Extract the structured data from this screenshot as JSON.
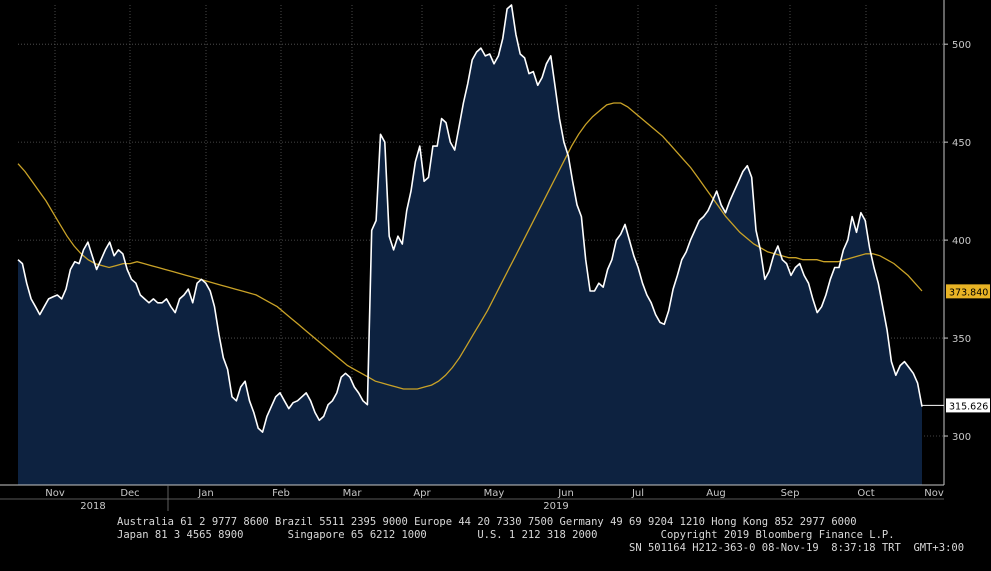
{
  "chart_data": {
    "type": "area",
    "y_axis_ticks": [
      "300",
      "350",
      "400",
      "450",
      "500"
    ],
    "ylim": [
      275,
      520
    ],
    "x_axis_months": [
      "Nov",
      "Dec",
      "Jan",
      "Feb",
      "Mar",
      "Apr",
      "May",
      "Jun",
      "Jul",
      "Aug",
      "Sep",
      "Oct",
      "Nov"
    ],
    "x_axis_years": [
      "2018",
      "2019"
    ],
    "last_price_label": "315.626",
    "moving_average_label": "373.840",
    "colors": {
      "price_line": "#ffffff",
      "area_fill": "#0d2240",
      "moving_average": "#c9a227",
      "ma_label_bg": "#e8b325",
      "background": "#000000",
      "grid": "#5a5a5a"
    },
    "series": [
      {
        "values": [
          390,
          388,
          378,
          370,
          366,
          362,
          366,
          370,
          371,
          372,
          370,
          375,
          385,
          389,
          388,
          395,
          399,
          392,
          385,
          390,
          395,
          399,
          392,
          395,
          393,
          385,
          380,
          378,
          372,
          370,
          368,
          370,
          368,
          368,
          370,
          366,
          363,
          370,
          372,
          375,
          368,
          378,
          380,
          378,
          374,
          366,
          352,
          340,
          334,
          320,
          318,
          325,
          328,
          318,
          312,
          304,
          302,
          310,
          315,
          320,
          322,
          318,
          314,
          317,
          318,
          320,
          322,
          318,
          312,
          308,
          310,
          316,
          318,
          322,
          330,
          332,
          330,
          325,
          322,
          318,
          316,
          405,
          410,
          454,
          450,
          402,
          395,
          402,
          398,
          415,
          425,
          440,
          448,
          430,
          432,
          448,
          448,
          462,
          460,
          450,
          446,
          458,
          470,
          480,
          492,
          496,
          498,
          494,
          495,
          490,
          494,
          503,
          518,
          520,
          505,
          495,
          493,
          485,
          486,
          479,
          483,
          490,
          494,
          478,
          462,
          450,
          443,
          430,
          418,
          412,
          390,
          374,
          374,
          378,
          376,
          385,
          390,
          400,
          403,
          408,
          400,
          392,
          386,
          378,
          372,
          368,
          362,
          358,
          357,
          364,
          375,
          382,
          390,
          394,
          400,
          405,
          410,
          412,
          415,
          420,
          425,
          418,
          414,
          420,
          425,
          430,
          435,
          438,
          432,
          405,
          395,
          380,
          384,
          392,
          397,
          390,
          388,
          382,
          386,
          388,
          382,
          378,
          370,
          363,
          366,
          372,
          380,
          386,
          386,
          395,
          400,
          412,
          404,
          414,
          410,
          396,
          386,
          378,
          366,
          354,
          338,
          331,
          336,
          338,
          335,
          332,
          327,
          315
        ]
      },
      {
        "values": [
          439,
          435,
          430,
          425,
          420,
          414,
          408,
          402,
          397,
          393,
          390,
          388,
          387,
          386,
          387,
          388,
          388,
          389,
          388,
          387,
          386,
          385,
          384,
          383,
          382,
          381,
          380,
          379,
          378,
          377,
          376,
          375,
          374,
          373,
          372,
          370,
          368,
          366,
          363,
          360,
          357,
          354,
          351,
          348,
          345,
          342,
          339,
          336,
          334,
          332,
          330,
          328,
          327,
          326,
          325,
          324,
          324,
          324,
          325,
          326,
          328,
          331,
          335,
          340,
          346,
          352,
          358,
          364,
          371,
          378,
          385,
          392,
          399,
          406,
          413,
          420,
          427,
          434,
          441,
          448,
          454,
          459,
          463,
          466,
          469,
          470,
          470,
          468,
          465,
          462,
          459,
          456,
          453,
          449,
          445,
          441,
          437,
          432,
          427,
          422,
          417,
          412,
          408,
          404,
          401,
          398,
          396,
          394,
          393,
          392,
          391,
          391,
          390,
          390,
          390,
          389,
          389,
          389,
          390,
          391,
          392,
          393,
          393,
          392,
          390,
          388,
          385,
          382,
          378,
          374
        ]
      }
    ]
  },
  "footer": {
    "line1": "Australia 61 2 9777 8600 Brazil 5511 2395 9000 Europe 44 20 7330 7500 Germany 49 69 9204 1210 Hong Kong 852 2977 6000",
    "line2": "Japan 81 3 4565 8900       Singapore 65 6212 1000        U.S. 1 212 318 2000          Copyright 2019 Bloomberg Finance L.P.",
    "line3": "SN 501164 H212-363-0 08-Nov-19  8:37:18 TRT  GMT+3:00"
  }
}
